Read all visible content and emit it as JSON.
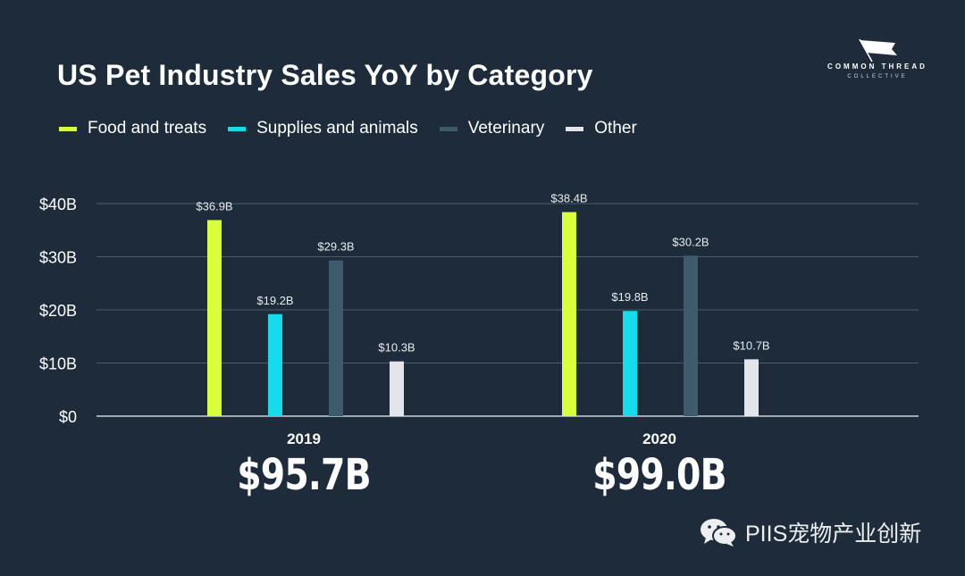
{
  "title": "US Pet Industry Sales YoY by Category",
  "logo": {
    "main": "COMMON THREAD",
    "sub": "COLLECTIVE"
  },
  "legend": [
    {
      "label": "Food and treats",
      "color": "#d9ff3c"
    },
    {
      "label": "Supplies and animals",
      "color": "#14dcea"
    },
    {
      "label": "Veterinary",
      "color": "#3d5b6d"
    },
    {
      "label": "Other",
      "color": "#e3e5e8"
    }
  ],
  "chart_data": {
    "type": "bar",
    "title": "US Pet Industry Sales YoY by Category",
    "categories": [
      "2019",
      "2020"
    ],
    "series": [
      {
        "name": "Food and treats",
        "values": [
          36.9,
          38.4
        ],
        "labels": [
          "$36.9B",
          "$38.4B"
        ]
      },
      {
        "name": "Supplies and animals",
        "values": [
          19.2,
          19.8
        ],
        "labels": [
          "$19.2B",
          "$19.8B"
        ]
      },
      {
        "name": "Veterinary",
        "values": [
          29.3,
          30.2
        ],
        "labels": [
          "$29.3B",
          "$30.2B"
        ]
      },
      {
        "name": "Other",
        "values": [
          10.3,
          10.7
        ],
        "labels": [
          "$10.3B",
          "$10.7B"
        ]
      }
    ],
    "yticks": [
      "$0",
      "$10B",
      "$20B",
      "$30B",
      "$40B"
    ],
    "ytick_values": [
      0,
      10,
      20,
      30,
      40
    ],
    "ylim": [
      0,
      40
    ],
    "grid": true,
    "legend_position": "top-left",
    "xlabel": "",
    "ylabel": ""
  },
  "groups": [
    {
      "year": "2019",
      "total": "$95.7B"
    },
    {
      "year": "2020",
      "total": "$99.0B"
    }
  ],
  "watermark": "PIIS宠物产业创新"
}
